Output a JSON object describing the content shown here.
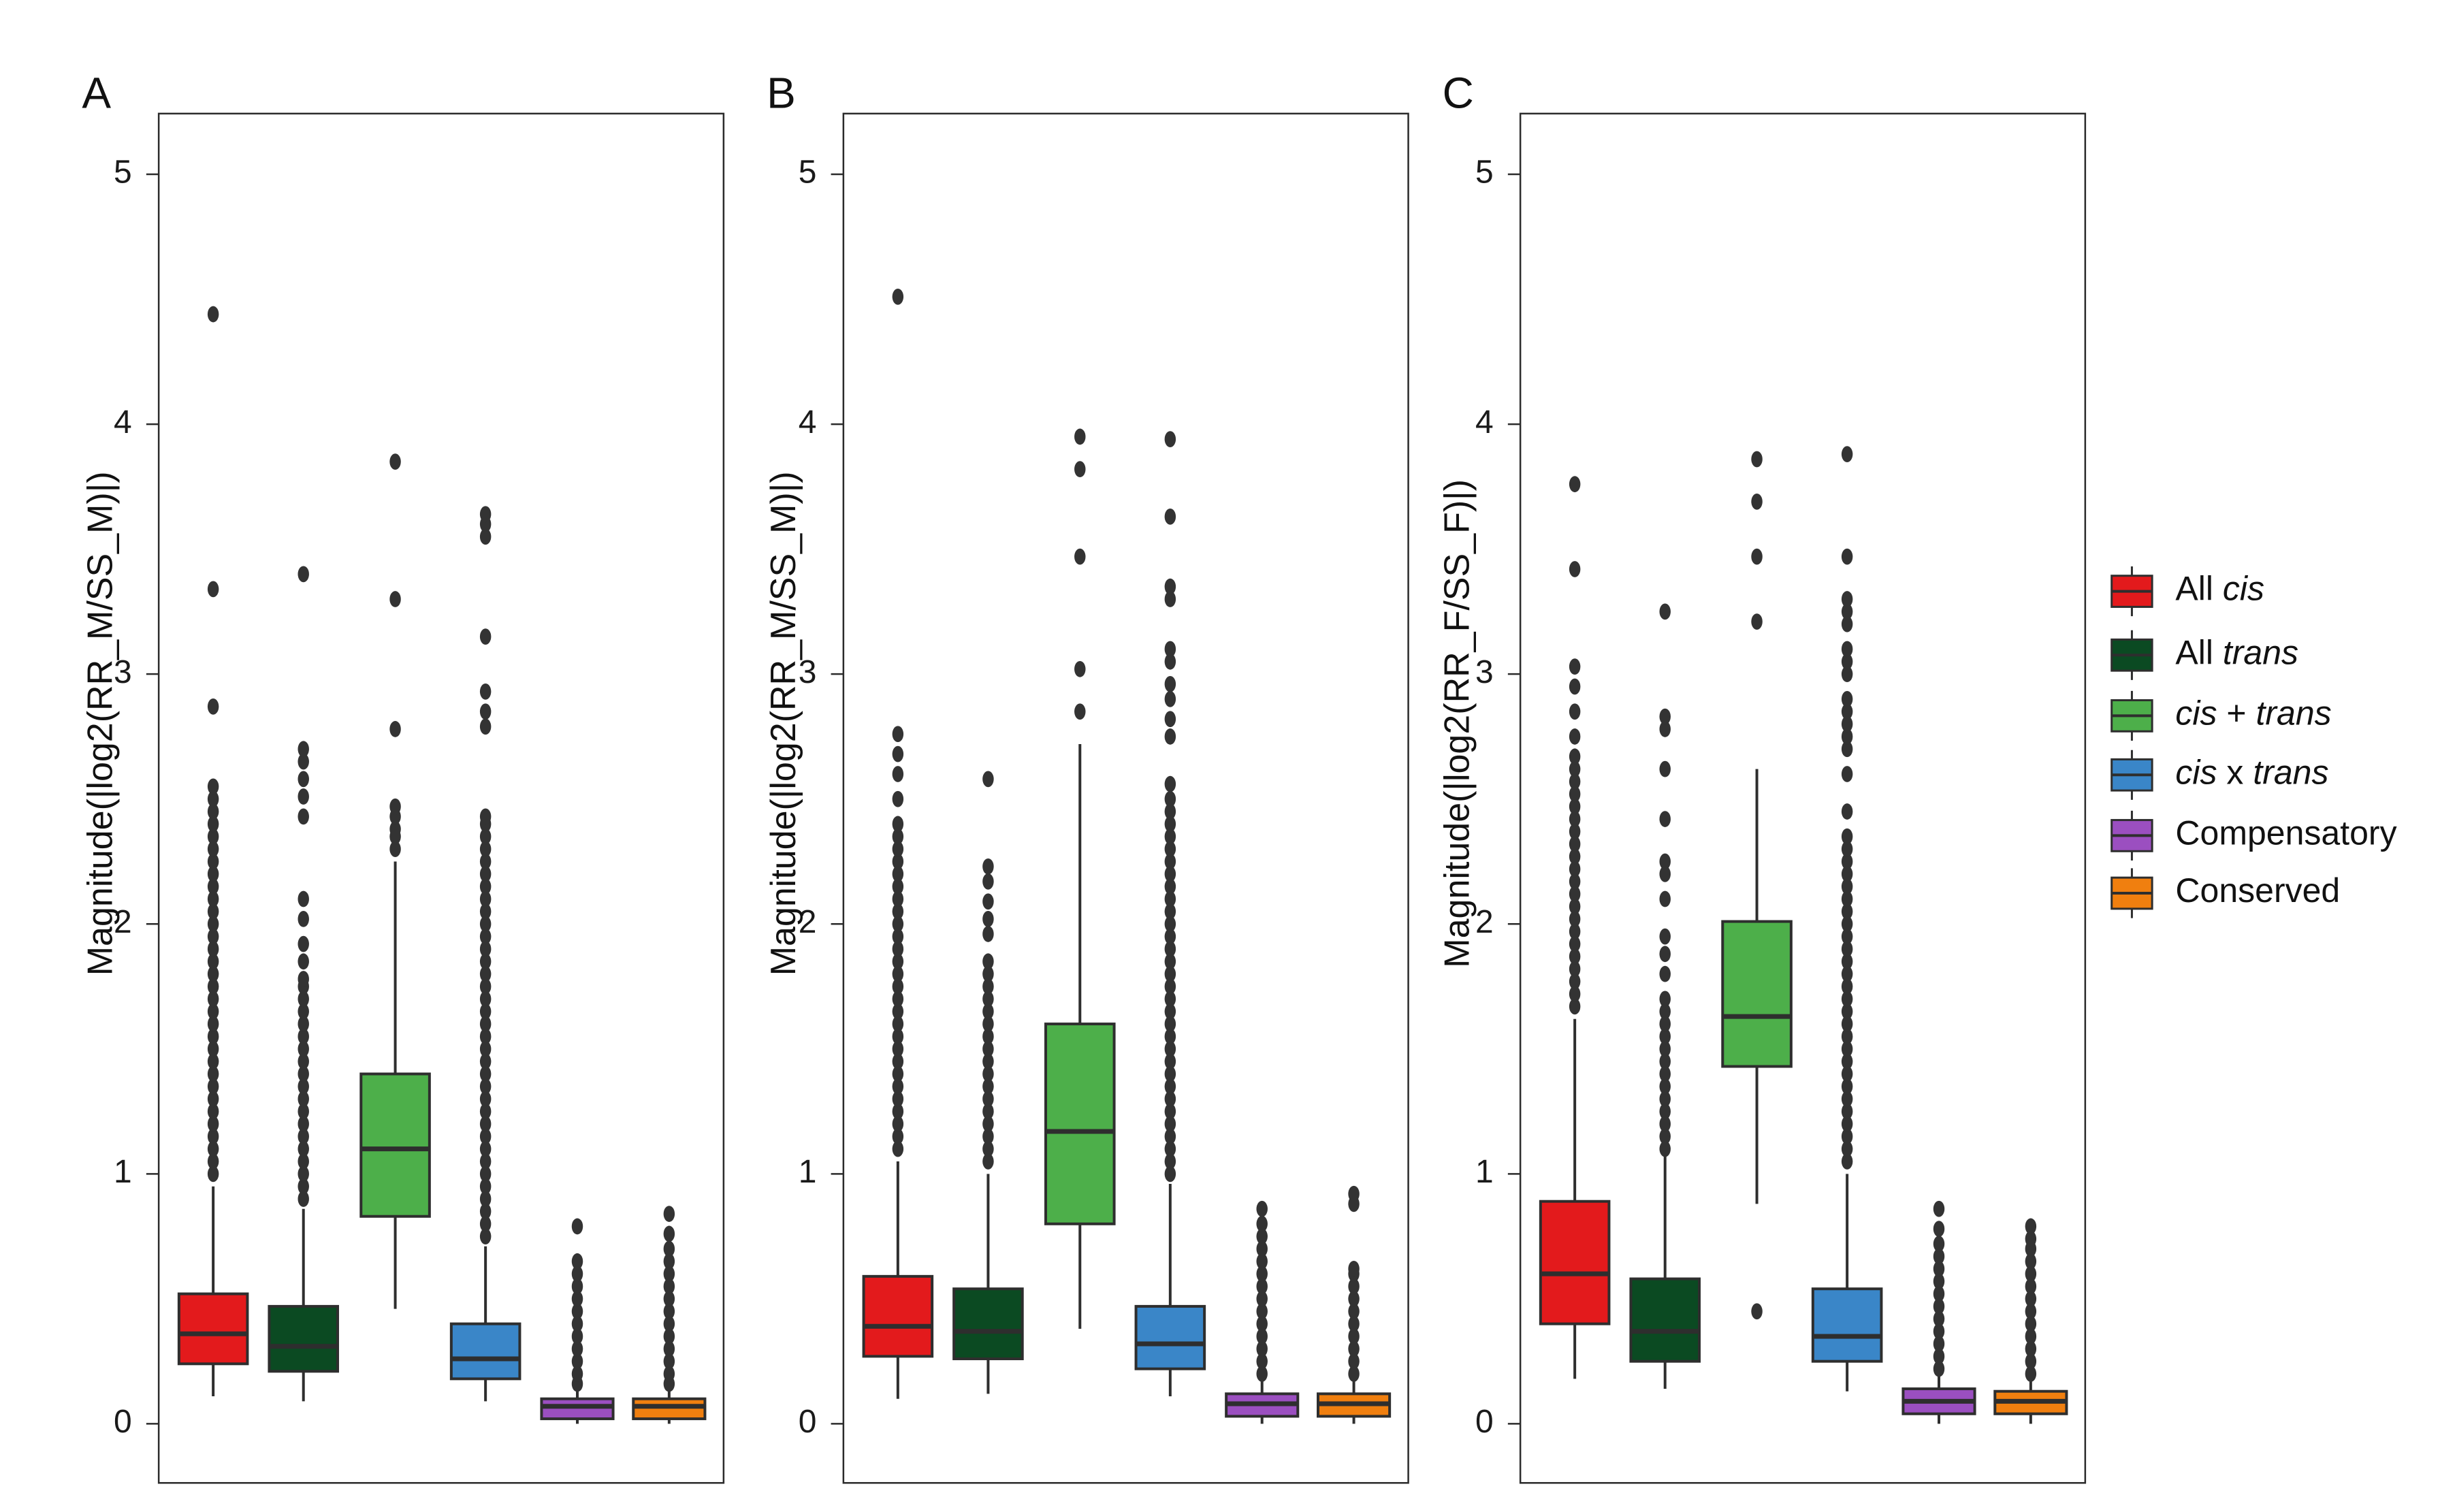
{
  "figure": {
    "panels": [
      "A",
      "B",
      "C"
    ]
  },
  "legend": {
    "items": [
      {
        "key": "all_cis",
        "parts": [
          {
            "t": "All ",
            "i": false
          },
          {
            "t": "cis",
            "i": true
          }
        ],
        "color": "#E31A1C"
      },
      {
        "key": "all_trans",
        "parts": [
          {
            "t": "All ",
            "i": false
          },
          {
            "t": "trans",
            "i": true
          }
        ],
        "color": "#0B4A22"
      },
      {
        "key": "cis_plus_trans",
        "parts": [
          {
            "t": "cis",
            "i": true
          },
          {
            "t": " + ",
            "i": false
          },
          {
            "t": "trans",
            "i": true
          }
        ],
        "color": "#4DAF4A"
      },
      {
        "key": "cis_x_trans",
        "parts": [
          {
            "t": "cis",
            "i": true
          },
          {
            "t": " x ",
            "i": false
          },
          {
            "t": "trans",
            "i": true
          }
        ],
        "color": "#3A86C8"
      },
      {
        "key": "compensatory",
        "parts": [
          {
            "t": "Compensatory",
            "i": false
          }
        ],
        "color": "#9B4FC0"
      },
      {
        "key": "conserved",
        "parts": [
          {
            "t": "Conserved",
            "i": false
          }
        ],
        "color": "#F07F0F"
      }
    ]
  },
  "chart_data": [
    {
      "type": "box",
      "panel": "A",
      "ylabel": "Magnitude(|log2(RR_M/SS_M)|)",
      "ylim": [
        -0.07,
        5.25
      ],
      "yticks": [
        0,
        1,
        2,
        3,
        4,
        5
      ],
      "categories": [
        "All cis",
        "All trans",
        "cis + trans",
        "cis x trans",
        "Compensatory",
        "Conserved"
      ],
      "boxes": [
        {
          "q1": 0.24,
          "median": 0.36,
          "q3": 0.52,
          "whisker_low": 0.11,
          "whisker_high": 0.95,
          "outliers": [
            1.0,
            1.05,
            1.1,
            1.15,
            1.2,
            1.25,
            1.3,
            1.35,
            1.4,
            1.45,
            1.5,
            1.55,
            1.6,
            1.65,
            1.7,
            1.75,
            1.8,
            1.85,
            1.9,
            1.95,
            2.0,
            2.05,
            2.1,
            2.15,
            2.2,
            2.25,
            2.3,
            2.35,
            2.4,
            2.45,
            2.5,
            2.55,
            2.87,
            3.34,
            4.44
          ]
        },
        {
          "q1": 0.21,
          "median": 0.31,
          "q3": 0.47,
          "whisker_low": 0.09,
          "whisker_high": 0.86,
          "outliers": [
            0.9,
            0.95,
            1.0,
            1.05,
            1.1,
            1.15,
            1.2,
            1.25,
            1.3,
            1.35,
            1.4,
            1.45,
            1.5,
            1.55,
            1.6,
            1.65,
            1.7,
            1.75,
            1.78,
            1.85,
            1.92,
            2.02,
            2.1,
            2.43,
            2.51,
            2.58,
            2.65,
            2.7,
            3.4
          ]
        },
        {
          "q1": 0.83,
          "median": 1.1,
          "q3": 1.4,
          "whisker_low": 0.46,
          "whisker_high": 2.25,
          "outliers": [
            2.3,
            2.35,
            2.38,
            2.43,
            2.47,
            2.78,
            3.3,
            3.85
          ]
        },
        {
          "q1": 0.18,
          "median": 0.26,
          "q3": 0.4,
          "whisker_low": 0.09,
          "whisker_high": 0.71,
          "outliers": [
            0.75,
            0.8,
            0.85,
            0.9,
            0.95,
            1.0,
            1.05,
            1.1,
            1.15,
            1.2,
            1.25,
            1.3,
            1.35,
            1.4,
            1.45,
            1.5,
            1.55,
            1.6,
            1.65,
            1.7,
            1.75,
            1.8,
            1.85,
            1.9,
            1.95,
            2.0,
            2.05,
            2.1,
            2.15,
            2.2,
            2.25,
            2.3,
            2.35,
            2.4,
            2.43,
            2.79,
            2.85,
            2.93,
            3.15,
            3.55,
            3.6,
            3.64
          ]
        },
        {
          "q1": 0.02,
          "median": 0.07,
          "q3": 0.1,
          "whisker_low": 0.0,
          "whisker_high": 0.14,
          "outliers": [
            0.16,
            0.2,
            0.25,
            0.3,
            0.35,
            0.4,
            0.45,
            0.5,
            0.55,
            0.6,
            0.65,
            0.79
          ]
        },
        {
          "q1": 0.02,
          "median": 0.07,
          "q3": 0.1,
          "whisker_low": 0.0,
          "whisker_high": 0.14,
          "outliers": [
            0.16,
            0.2,
            0.25,
            0.3,
            0.35,
            0.4,
            0.45,
            0.5,
            0.55,
            0.6,
            0.65,
            0.7,
            0.76,
            0.84
          ]
        }
      ]
    },
    {
      "type": "box",
      "panel": "B",
      "ylabel": "Magnitude(|log2(RR_M/SS_M)|)",
      "ylim": [
        -0.07,
        5.25
      ],
      "yticks": [
        0,
        1,
        2,
        3,
        4,
        5
      ],
      "categories": [
        "All cis",
        "All trans",
        "cis + trans",
        "cis x trans",
        "Compensatory",
        "Conserved"
      ],
      "boxes": [
        {
          "q1": 0.27,
          "median": 0.39,
          "q3": 0.59,
          "whisker_low": 0.1,
          "whisker_high": 1.05,
          "outliers": [
            1.1,
            1.15,
            1.2,
            1.25,
            1.3,
            1.35,
            1.4,
            1.45,
            1.5,
            1.55,
            1.6,
            1.65,
            1.7,
            1.75,
            1.8,
            1.85,
            1.9,
            1.95,
            2.0,
            2.05,
            2.1,
            2.15,
            2.2,
            2.25,
            2.3,
            2.35,
            2.4,
            2.5,
            2.6,
            2.68,
            2.76,
            4.51
          ]
        },
        {
          "q1": 0.26,
          "median": 0.37,
          "q3": 0.54,
          "whisker_low": 0.12,
          "whisker_high": 1.0,
          "outliers": [
            1.05,
            1.1,
            1.15,
            1.2,
            1.25,
            1.3,
            1.35,
            1.4,
            1.45,
            1.5,
            1.55,
            1.6,
            1.65,
            1.7,
            1.75,
            1.8,
            1.85,
            1.96,
            2.02,
            2.09,
            2.17,
            2.23,
            2.58
          ]
        },
        {
          "q1": 0.8,
          "median": 1.17,
          "q3": 1.6,
          "whisker_low": 0.38,
          "whisker_high": 2.72,
          "outliers": [
            2.85,
            3.02,
            3.47,
            3.82,
            3.95
          ]
        },
        {
          "q1": 0.22,
          "median": 0.32,
          "q3": 0.47,
          "whisker_low": 0.11,
          "whisker_high": 0.96,
          "outliers": [
            1.0,
            1.05,
            1.1,
            1.15,
            1.2,
            1.25,
            1.3,
            1.35,
            1.4,
            1.45,
            1.5,
            1.55,
            1.6,
            1.65,
            1.7,
            1.75,
            1.8,
            1.85,
            1.9,
            1.95,
            2.0,
            2.05,
            2.1,
            2.15,
            2.2,
            2.25,
            2.3,
            2.35,
            2.4,
            2.45,
            2.5,
            2.56,
            2.75,
            2.82,
            2.9,
            2.96,
            3.05,
            3.1,
            3.3,
            3.35,
            3.63,
            3.94
          ]
        },
        {
          "q1": 0.03,
          "median": 0.08,
          "q3": 0.12,
          "whisker_low": 0.0,
          "whisker_high": 0.18,
          "outliers": [
            0.2,
            0.25,
            0.3,
            0.35,
            0.4,
            0.45,
            0.5,
            0.55,
            0.6,
            0.65,
            0.7,
            0.75,
            0.8,
            0.86
          ]
        },
        {
          "q1": 0.03,
          "median": 0.08,
          "q3": 0.12,
          "whisker_low": 0.0,
          "whisker_high": 0.18,
          "outliers": [
            0.2,
            0.25,
            0.3,
            0.35,
            0.4,
            0.45,
            0.5,
            0.55,
            0.6,
            0.62,
            0.88,
            0.92
          ]
        }
      ]
    },
    {
      "type": "box",
      "panel": "C",
      "ylabel": "Magnitude(|log2(RR_F/SS_F)|)",
      "ylim": [
        -0.07,
        5.25
      ],
      "yticks": [
        0,
        1,
        2,
        3,
        4,
        5
      ],
      "categories": [
        "All cis",
        "All trans",
        "cis + trans",
        "cis x trans",
        "Compensatory",
        "Conserved"
      ],
      "boxes": [
        {
          "q1": 0.4,
          "median": 0.6,
          "q3": 0.89,
          "whisker_low": 0.18,
          "whisker_high": 1.62,
          "outliers": [
            1.67,
            1.72,
            1.77,
            1.82,
            1.87,
            1.92,
            1.97,
            2.02,
            2.07,
            2.12,
            2.17,
            2.22,
            2.27,
            2.32,
            2.37,
            2.42,
            2.47,
            2.52,
            2.57,
            2.62,
            2.67,
            2.75,
            2.85,
            2.95,
            3.03,
            3.42,
            3.76
          ]
        },
        {
          "q1": 0.25,
          "median": 0.37,
          "q3": 0.58,
          "whisker_low": 0.14,
          "whisker_high": 1.08,
          "outliers": [
            1.1,
            1.15,
            1.2,
            1.25,
            1.3,
            1.35,
            1.4,
            1.45,
            1.5,
            1.55,
            1.6,
            1.65,
            1.7,
            1.8,
            1.88,
            1.95,
            2.1,
            2.2,
            2.25,
            2.42,
            2.62,
            2.78,
            2.83,
            3.25
          ]
        },
        {
          "q1": 1.43,
          "median": 1.63,
          "q3": 2.01,
          "whisker_low": 0.88,
          "whisker_high": 2.62,
          "outliers": [
            0.45,
            3.21,
            3.47,
            3.69,
            3.86
          ]
        },
        {
          "q1": 0.25,
          "median": 0.35,
          "q3": 0.54,
          "whisker_low": 0.13,
          "whisker_high": 1.0,
          "outliers": [
            1.05,
            1.1,
            1.15,
            1.2,
            1.25,
            1.3,
            1.35,
            1.4,
            1.45,
            1.5,
            1.55,
            1.6,
            1.65,
            1.7,
            1.75,
            1.8,
            1.85,
            1.9,
            1.95,
            2.0,
            2.05,
            2.1,
            2.15,
            2.2,
            2.25,
            2.3,
            2.35,
            2.45,
            2.6,
            2.7,
            2.75,
            2.8,
            2.85,
            2.9,
            3.0,
            3.05,
            3.1,
            3.2,
            3.25,
            3.3,
            3.47,
            3.88
          ]
        },
        {
          "q1": 0.04,
          "median": 0.09,
          "q3": 0.14,
          "whisker_low": 0.0,
          "whisker_high": 0.2,
          "outliers": [
            0.22,
            0.27,
            0.32,
            0.37,
            0.42,
            0.47,
            0.52,
            0.57,
            0.62,
            0.67,
            0.72,
            0.78,
            0.86
          ]
        },
        {
          "q1": 0.04,
          "median": 0.09,
          "q3": 0.13,
          "whisker_low": 0.0,
          "whisker_high": 0.18,
          "outliers": [
            0.2,
            0.25,
            0.3,
            0.35,
            0.4,
            0.45,
            0.5,
            0.55,
            0.6,
            0.65,
            0.7,
            0.74,
            0.79
          ]
        }
      ]
    }
  ]
}
